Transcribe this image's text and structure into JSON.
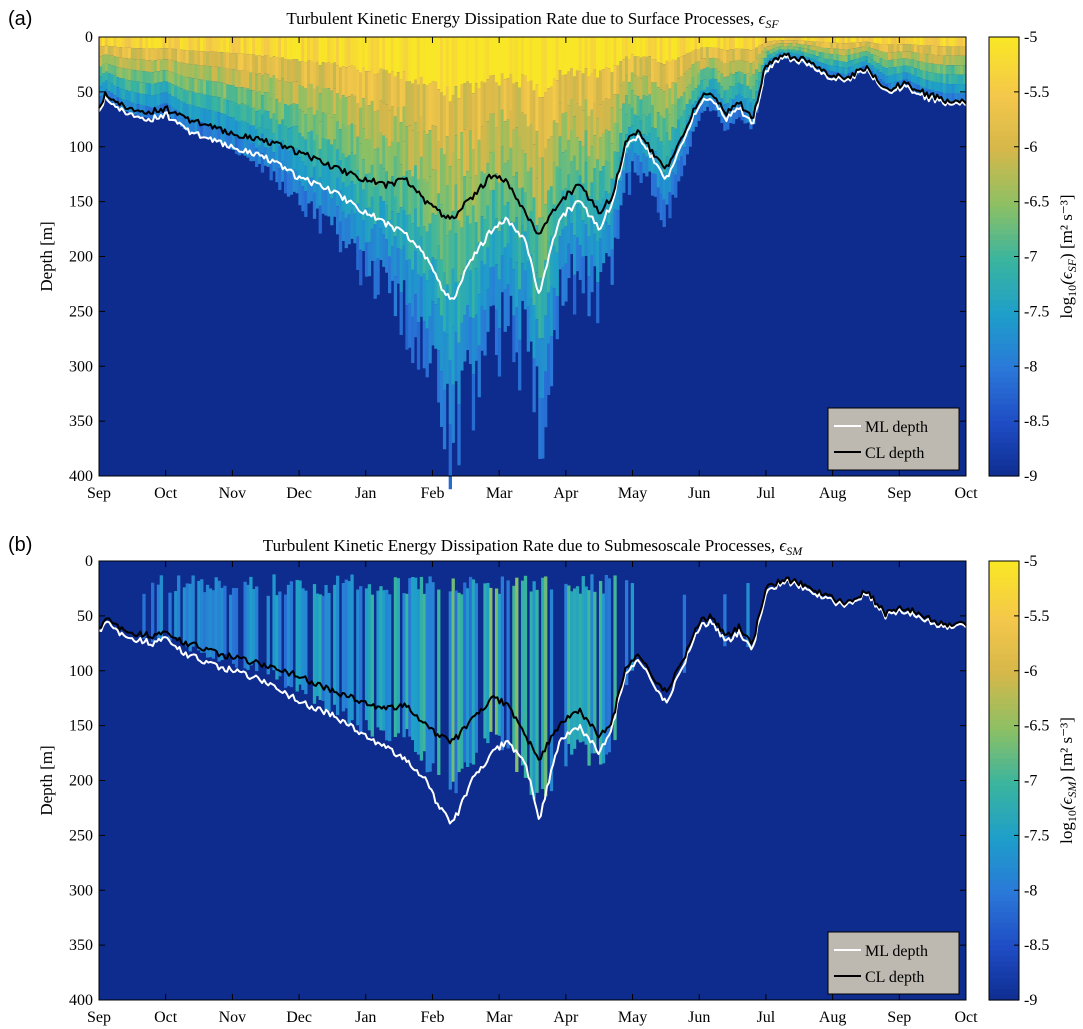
{
  "colors": {
    "colormap": [
      "#0d2c8e",
      "#1f4cc4",
      "#2a78d8",
      "#1e9fc9",
      "#3bb59e",
      "#8ec063",
      "#d6b74a",
      "#f4c84a",
      "#f9e626"
    ],
    "background_deep": "#0d2c8e",
    "ml_line": "#ffffff",
    "cl_line": "#000000",
    "legend_bg": "#bdb8b0"
  },
  "chart_data": [
    {
      "panel_label": "(a)",
      "type": "heatmap",
      "title_main": "Turbulent Kinetic Energy Dissipation Rate due to Surface Processes, ",
      "title_symbol": "ϵ",
      "title_subscript": "SF",
      "ylabel": "Depth [m]",
      "x_ticks": [
        "Sep",
        "Oct",
        "Nov",
        "Dec",
        "Jan",
        "Feb",
        "Mar",
        "Apr",
        "May",
        "Jun",
        "Jul",
        "Aug",
        "Sep",
        "Oct"
      ],
      "y_ticks": [
        "0",
        "50",
        "100",
        "150",
        "200",
        "250",
        "300",
        "350",
        "400"
      ],
      "ylim": [
        0,
        400
      ],
      "y_reversed": true,
      "colorbar": {
        "label_prefix": "log",
        "label_base": "10",
        "label_symbol": "(ϵ",
        "label_subscript": "SF",
        "label_units": ") [m² s⁻³]",
        "ticks": [
          "-5",
          "-5.5",
          "-6",
          "-6.5",
          "-7",
          "-7.5",
          "-8",
          "-8.5",
          "-9"
        ],
        "range": [
          -9,
          -5
        ]
      },
      "legend": {
        "position": "bottom-right",
        "entries": [
          "ML depth",
          "CL depth"
        ]
      },
      "series": [
        {
          "name": "ML depth",
          "x_month_index": [
            0,
            0.1,
            0.3,
            0.5,
            0.8,
            1.0,
            1.3,
            1.6,
            2.0,
            2.5,
            3.0,
            3.5,
            4.0,
            4.3,
            4.6,
            4.9,
            5.1,
            5.3,
            5.6,
            5.9,
            6.1,
            6.4,
            6.6,
            6.9,
            7.2,
            7.5,
            7.7,
            7.9,
            8.1,
            8.3,
            8.5,
            8.8,
            9.0,
            9.2,
            9.4,
            9.6,
            9.8,
            10.0,
            10.2,
            10.4,
            10.6,
            10.9,
            11.2,
            11.5,
            11.8,
            12.1,
            12.4,
            12.7,
            13.0
          ],
          "depth": [
            65,
            55,
            65,
            70,
            75,
            70,
            85,
            92,
            100,
            110,
            128,
            140,
            160,
            170,
            180,
            200,
            225,
            240,
            200,
            175,
            165,
            185,
            235,
            165,
            150,
            175,
            150,
            100,
            90,
            110,
            130,
            90,
            60,
            55,
            75,
            65,
            80,
            30,
            20,
            20,
            25,
            35,
            40,
            30,
            50,
            45,
            55,
            60,
            60
          ]
        },
        {
          "name": "CL depth",
          "x_month_index": [
            0,
            0.1,
            0.3,
            0.5,
            0.8,
            1.0,
            1.3,
            1.6,
            2.0,
            2.5,
            3.0,
            3.5,
            4.0,
            4.3,
            4.6,
            4.9,
            5.1,
            5.3,
            5.6,
            5.9,
            6.1,
            6.4,
            6.6,
            6.9,
            7.2,
            7.5,
            7.7,
            7.9,
            8.1,
            8.3,
            8.5,
            8.8,
            9.0,
            9.2,
            9.4,
            9.6,
            9.8,
            10.0,
            10.2,
            10.4,
            10.6,
            10.9,
            11.2,
            11.5,
            11.8,
            12.1,
            12.4,
            12.7,
            13.0
          ],
          "depth": [
            62,
            52,
            60,
            65,
            68,
            65,
            75,
            80,
            88,
            95,
            105,
            118,
            130,
            135,
            130,
            150,
            160,
            165,
            145,
            125,
            130,
            160,
            180,
            150,
            135,
            160,
            145,
            95,
            85,
            105,
            120,
            85,
            55,
            50,
            70,
            60,
            75,
            25,
            18,
            18,
            22,
            32,
            38,
            28,
            48,
            42,
            52,
            58,
            58
          ]
        }
      ]
    },
    {
      "panel_label": "(b)",
      "type": "heatmap",
      "title_main": "Turbulent Kinetic Energy Dissipation Rate due to Submesoscale Processes, ",
      "title_symbol": "ϵ",
      "title_subscript": "SM",
      "ylabel": "Depth [m]",
      "x_ticks": [
        "Sep",
        "Oct",
        "Nov",
        "Dec",
        "Jan",
        "Feb",
        "Mar",
        "Apr",
        "May",
        "Jun",
        "Jul",
        "Aug",
        "Sep",
        "Oct"
      ],
      "y_ticks": [
        "0",
        "50",
        "100",
        "150",
        "200",
        "250",
        "300",
        "350",
        "400"
      ],
      "ylim": [
        0,
        400
      ],
      "y_reversed": true,
      "colorbar": {
        "label_prefix": "log",
        "label_base": "10",
        "label_symbol": "(ϵ",
        "label_subscript": "SM",
        "label_units": ") [m² s⁻³]",
        "ticks": [
          "-5",
          "-5.5",
          "-6",
          "-6.5",
          "-7",
          "-7.5",
          "-8",
          "-8.5",
          "-9"
        ],
        "range": [
          -9,
          -5
        ]
      },
      "legend": {
        "position": "bottom-right",
        "entries": [
          "ML depth",
          "CL depth"
        ]
      },
      "series": [
        {
          "name": "ML depth",
          "x_month_index": [
            0,
            0.1,
            0.3,
            0.5,
            0.8,
            1.0,
            1.3,
            1.6,
            2.0,
            2.5,
            3.0,
            3.5,
            4.0,
            4.3,
            4.6,
            4.9,
            5.1,
            5.3,
            5.6,
            5.9,
            6.1,
            6.4,
            6.6,
            6.9,
            7.2,
            7.5,
            7.7,
            7.9,
            8.1,
            8.3,
            8.5,
            8.8,
            9.0,
            9.2,
            9.4,
            9.6,
            9.8,
            10.0,
            10.2,
            10.4,
            10.6,
            10.9,
            11.2,
            11.5,
            11.8,
            12.1,
            12.4,
            12.7,
            13.0
          ],
          "depth": [
            65,
            55,
            65,
            70,
            75,
            70,
            85,
            92,
            100,
            110,
            128,
            140,
            160,
            170,
            180,
            200,
            225,
            240,
            200,
            175,
            165,
            185,
            235,
            165,
            150,
            175,
            150,
            100,
            90,
            110,
            130,
            90,
            60,
            55,
            75,
            65,
            80,
            30,
            20,
            20,
            25,
            35,
            40,
            30,
            50,
            45,
            55,
            60,
            60
          ]
        },
        {
          "name": "CL depth",
          "x_month_index": [
            0,
            0.1,
            0.3,
            0.5,
            0.8,
            1.0,
            1.3,
            1.6,
            2.0,
            2.5,
            3.0,
            3.5,
            4.0,
            4.3,
            4.6,
            4.9,
            5.1,
            5.3,
            5.6,
            5.9,
            6.1,
            6.4,
            6.6,
            6.9,
            7.2,
            7.5,
            7.7,
            7.9,
            8.1,
            8.3,
            8.5,
            8.8,
            9.0,
            9.2,
            9.4,
            9.6,
            9.8,
            10.0,
            10.2,
            10.4,
            10.6,
            10.9,
            11.2,
            11.5,
            11.8,
            12.1,
            12.4,
            12.7,
            13.0
          ],
          "depth": [
            62,
            52,
            60,
            65,
            68,
            65,
            75,
            80,
            88,
            95,
            105,
            118,
            130,
            135,
            130,
            150,
            160,
            165,
            145,
            125,
            130,
            160,
            180,
            150,
            135,
            160,
            145,
            95,
            85,
            105,
            120,
            85,
            55,
            50,
            70,
            60,
            75,
            25,
            18,
            18,
            22,
            32,
            38,
            28,
            48,
            42,
            52,
            58,
            58
          ]
        }
      ]
    }
  ]
}
